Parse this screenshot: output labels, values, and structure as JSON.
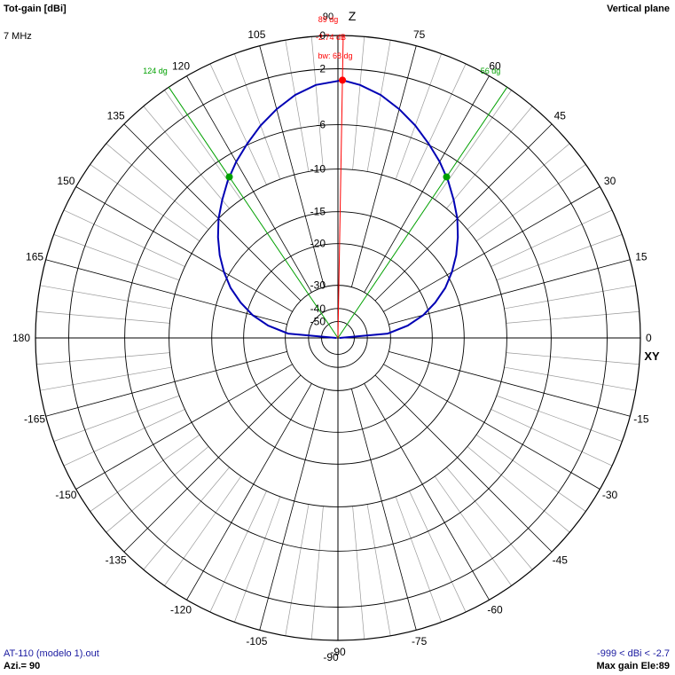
{
  "header": {
    "title": "Tot-gain [dBi]",
    "frequency": "7 MHz",
    "plane": "Vertical plane"
  },
  "footer": {
    "file": "AT-110 (modelo 1).out",
    "azimuth": "Azi.= 90",
    "range": "-999 < dBi < -2.7",
    "max_gain": "Max gain Ele:89"
  },
  "colors": {
    "pattern": "#0000b4",
    "beamwidth": "#00a000",
    "max_marker": "#ff0000",
    "grid": "#000000",
    "grid_minor": "#9a9a9a"
  },
  "chart_data": {
    "type": "polar",
    "plane": "vertical",
    "axis_top": "Z",
    "axis_right": "XY",
    "angle_ticks": [
      0,
      15,
      30,
      45,
      60,
      75,
      90,
      105,
      120,
      135,
      150,
      165,
      180,
      -165,
      -150,
      -135,
      -120,
      -105,
      -90,
      -75,
      -60,
      -45,
      -30,
      -15
    ],
    "angle_labels": [
      "0",
      "15",
      "30",
      "45",
      "60",
      "75",
      "90",
      "105",
      "120",
      "135",
      "150",
      "165",
      "180",
      "-165",
      "-150",
      "-135",
      "-120",
      "-105",
      "-90",
      "-75",
      "-60",
      "-45",
      "-30",
      "-15"
    ],
    "radial_scale": "ARRL log (0.89 per 2 dB)",
    "radial_rings_db": [
      -2,
      -6,
      -10,
      -15,
      -20,
      -30,
      -40,
      -50
    ],
    "radial_labels": [
      "0",
      "-2",
      "-6",
      "-10",
      "-15",
      "-20",
      "-30",
      "-40",
      "-50"
    ],
    "series": [
      {
        "elevation_deg": [
          0,
          5,
          10,
          15,
          20,
          25,
          30,
          35,
          40,
          45,
          50,
          55,
          60,
          65,
          70,
          75,
          80,
          85,
          89,
          95,
          100,
          105,
          110,
          115,
          120,
          125,
          130,
          135,
          140,
          145,
          150,
          155,
          160,
          165,
          170,
          175,
          180
        ],
        "gain_dbi": [
          -90,
          -30.9,
          -24.9,
          -21.1,
          -18.4,
          -16.1,
          -14.3,
          -12.7,
          -11.3,
          -10.0,
          -8.9,
          -7.8,
          -6.8,
          -5.9,
          -5.0,
          -4.2,
          -3.5,
          -3.0,
          -2.74,
          -3.0,
          -3.5,
          -4.2,
          -5.0,
          -5.9,
          -6.8,
          -7.8,
          -8.9,
          -10.0,
          -11.3,
          -12.7,
          -14.3,
          -16.1,
          -18.4,
          -21.1,
          -24.9,
          -30.9,
          -90
        ]
      }
    ],
    "max_gain": {
      "angle_deg": 89,
      "gain_db": -2.74
    },
    "beamwidth": {
      "deg": 68,
      "low_angle_deg": 56,
      "high_angle_deg": 124
    },
    "annotations": {
      "max_angle": "89 dg",
      "max_gain": "-2.74 dB",
      "beamwidth": "bw: 68 dg",
      "bw_low": "56 dg",
      "bw_high": "124 dg"
    }
  }
}
